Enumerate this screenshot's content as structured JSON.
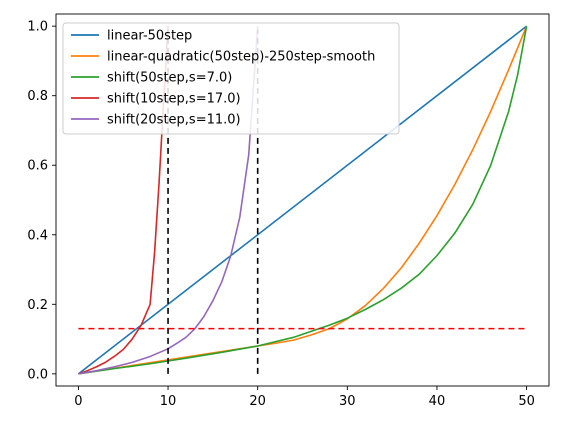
{
  "chart_data": {
    "type": "line",
    "title": "",
    "xlabel": "",
    "ylabel": "",
    "xlim": [
      -2.5,
      52.5
    ],
    "ylim": [
      -0.035,
      1.035
    ],
    "x_ticks": [
      0,
      10,
      20,
      30,
      40,
      50
    ],
    "y_ticks": [
      0.0,
      0.2,
      0.4,
      0.6,
      0.8,
      1.0
    ],
    "x_tick_labels": [
      "0",
      "10",
      "20",
      "30",
      "40",
      "50"
    ],
    "y_tick_labels": [
      "0.0",
      "0.2",
      "0.4",
      "0.6",
      "0.8",
      "1.0"
    ],
    "grid": false,
    "legend_position": "top-left",
    "series": [
      {
        "name": "linear-50step",
        "color": "#1f77b4",
        "x": [
          0,
          50
        ],
        "y": [
          0.0,
          1.0
        ]
      },
      {
        "name": "linear-quadratic(50step)-250step-smooth",
        "color": "#ff7f0e",
        "x": [
          0,
          5,
          10,
          15,
          20,
          22,
          24,
          26,
          28,
          30,
          32,
          34,
          36,
          38,
          40,
          42,
          44,
          46,
          48,
          50
        ],
        "y": [
          0.0,
          0.02,
          0.04,
          0.06,
          0.08,
          0.088,
          0.097,
          0.112,
          0.13,
          0.158,
          0.196,
          0.245,
          0.304,
          0.375,
          0.455,
          0.545,
          0.645,
          0.755,
          0.875,
          1.0
        ]
      },
      {
        "name": "shift(50step,s=7.0)",
        "color": "#2ca02c",
        "x": [
          0,
          4,
          8,
          12,
          16,
          20,
          24,
          28,
          30,
          32,
          34,
          36,
          38,
          40,
          42,
          44,
          46,
          48,
          49,
          50
        ],
        "y": [
          0.0,
          0.015,
          0.029,
          0.045,
          0.062,
          0.08,
          0.105,
          0.14,
          0.16,
          0.185,
          0.213,
          0.246,
          0.286,
          0.34,
          0.405,
          0.488,
          0.6,
          0.755,
          0.86,
          1.0
        ]
      },
      {
        "name": "shift(10step,s=17.0)",
        "color": "#d62728",
        "x": [
          0,
          1,
          2,
          3,
          4,
          5,
          6,
          7,
          8,
          8.5,
          9,
          9.5,
          10
        ],
        "y": [
          0.0,
          0.009,
          0.02,
          0.033,
          0.05,
          0.07,
          0.1,
          0.14,
          0.2,
          0.35,
          0.55,
          0.78,
          1.0
        ]
      },
      {
        "name": "shift(20step,s=11.0)",
        "color": "#9467bd",
        "x": [
          0,
          2,
          4,
          6,
          8,
          10,
          11,
          12,
          13,
          14,
          15,
          16,
          17,
          18,
          19,
          20
        ],
        "y": [
          0.0,
          0.009,
          0.02,
          0.033,
          0.05,
          0.072,
          0.088,
          0.105,
          0.13,
          0.165,
          0.21,
          0.265,
          0.34,
          0.45,
          0.63,
          1.0
        ]
      }
    ],
    "reference_lines": [
      {
        "orientation": "vertical",
        "x": 10,
        "y_range": [
          0.0,
          0.99
        ],
        "color": "#000000",
        "style": "dashed"
      },
      {
        "orientation": "vertical",
        "x": 20,
        "y_range": [
          0.0,
          0.99
        ],
        "color": "#000000",
        "style": "dashed"
      },
      {
        "orientation": "horizontal",
        "y": 0.13,
        "x_range": [
          0,
          50
        ],
        "color": "#ff0000",
        "style": "dashed"
      }
    ]
  }
}
